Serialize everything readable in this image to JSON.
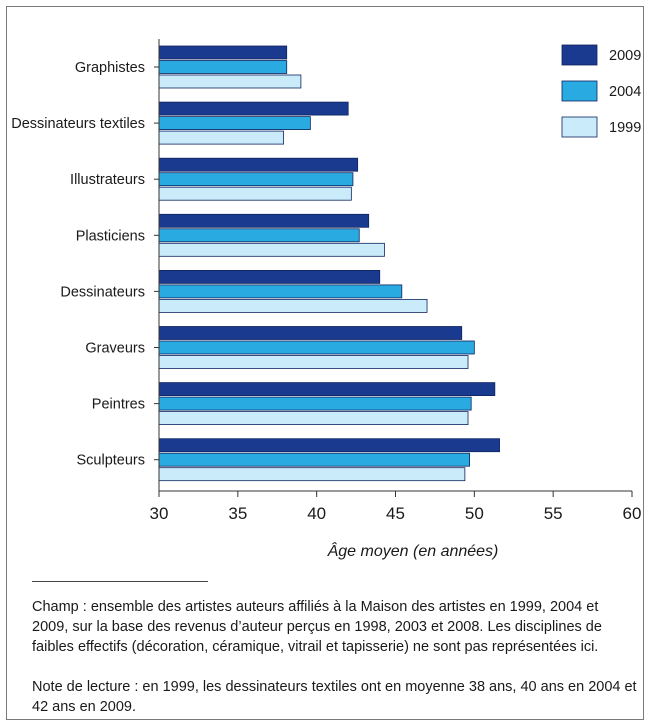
{
  "chart_data": {
    "type": "bar",
    "orientation": "horizontal",
    "title": "",
    "xlabel": "Âge moyen (en années)",
    "ylabel": "",
    "xlim": [
      30,
      60
    ],
    "xticks": [
      30,
      35,
      40,
      45,
      50,
      55,
      60
    ],
    "grid": false,
    "legend_position": "top-right",
    "categories": [
      "Graphistes",
      "Dessinateurs textiles",
      "Illustrateurs",
      "Plasticiens",
      "Dessinateurs",
      "Graveurs",
      "Peintres",
      "Sculpteurs"
    ],
    "series": [
      {
        "name": "2009",
        "color": "#1a3a8f",
        "values": [
          38.1,
          42.0,
          42.6,
          43.3,
          44.0,
          49.2,
          51.3,
          51.6
        ]
      },
      {
        "name": "2004",
        "color": "#29abe2",
        "values": [
          38.1,
          39.6,
          42.3,
          42.7,
          45.4,
          50.0,
          49.8,
          49.7
        ]
      },
      {
        "name": "1999",
        "color": "#c9ebfa",
        "values": [
          39.0,
          37.9,
          42.2,
          44.3,
          47.0,
          49.6,
          49.6,
          49.4
        ]
      }
    ]
  },
  "notes": {
    "champ": "Champ : ensemble des artistes auteurs affiliés à la Maison des artistes en 1999, 2004 et 2009, sur la base des revenus d’auteur perçus en 1998, 2003 et 2008. Les disciplines de faibles effectifs (décoration, céramique, vitrail et tapisserie) ne sont pas représentées ici.",
    "lecture": "Note de lecture : en 1999, les dessinateurs textiles ont en moyenne 38 ans, 40 ans en 2004 et 42 ans en 2009."
  }
}
